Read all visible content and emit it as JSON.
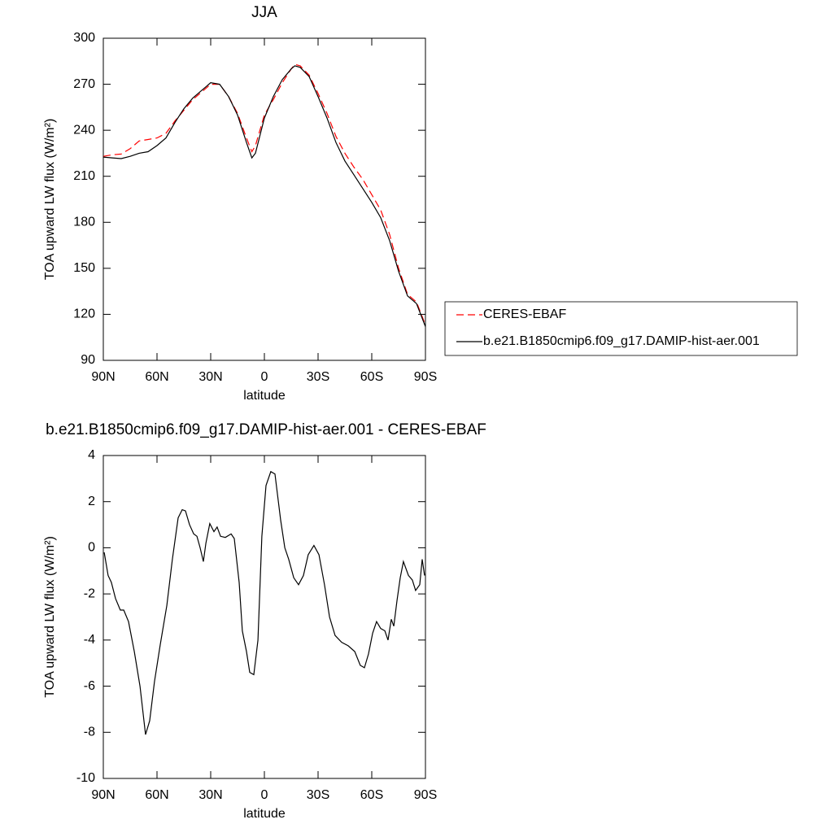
{
  "chart_data": [
    {
      "type": "line",
      "title": "JJA",
      "xlabel": "latitude",
      "ylabel": "TOA upward LW flux (W/m²)",
      "x": [
        90,
        85,
        80,
        75,
        70,
        65,
        60,
        55,
        50,
        45,
        40,
        35,
        30,
        25,
        20,
        15,
        10,
        7,
        5,
        0,
        -5,
        -10,
        -15,
        -17,
        -20,
        -25,
        -30,
        -35,
        -40,
        -45,
        -50,
        -55,
        -60,
        -65,
        -70,
        -75,
        -80,
        -85,
        -90
      ],
      "xlim": [
        90,
        -90
      ],
      "xticks": [
        {
          "value": 90,
          "label": "90N"
        },
        {
          "value": 60,
          "label": "60N"
        },
        {
          "value": 30,
          "label": "30N"
        },
        0,
        {
          "value": -30,
          "label": "30S"
        },
        {
          "value": -60,
          "label": "60S"
        },
        {
          "value": -90,
          "label": "90S"
        }
      ],
      "ylim": [
        90,
        300
      ],
      "yticks": [
        90,
        120,
        150,
        180,
        210,
        240,
        270,
        300
      ],
      "legend": "right",
      "series": [
        {
          "name": "CERES-EBAF",
          "color": "#ff0000",
          "dashed": true,
          "values": [
            223,
            224,
            224.5,
            228,
            233,
            234,
            235,
            238,
            246,
            253,
            260,
            265,
            270,
            270,
            262,
            251,
            235,
            226,
            230,
            250,
            260,
            271,
            280,
            283,
            282,
            276,
            264,
            251,
            236,
            225,
            216,
            208,
            198,
            188,
            172,
            150,
            133,
            128,
            113
          ]
        },
        {
          "name": "b.e21.B1850cmip6.f09_g17.DAMIP-hist-aer.001",
          "color": "#000000",
          "dashed": false,
          "values": [
            222.5,
            222,
            221.5,
            223,
            225,
            226,
            230,
            235,
            245,
            254,
            261,
            266,
            271,
            270,
            262,
            250,
            232,
            222,
            225,
            248,
            262,
            273,
            280,
            282,
            281,
            275,
            262,
            248,
            232,
            220,
            211,
            202,
            193,
            183,
            168,
            148,
            132,
            127,
            112
          ]
        }
      ]
    },
    {
      "type": "line",
      "title": "b.e21.B1850cmip6.f09_g17.DAMIP-hist-aer.001 - CERES-EBAF",
      "xlabel": "latitude",
      "ylabel": "TOA upward LW flux (W/m²)",
      "x": [
        89.5,
        87.3,
        85.5,
        83.2,
        80.5,
        78.6,
        75.9,
        72.7,
        69.5,
        66.4,
        64.1,
        61.4,
        58.2,
        54.5,
        51.4,
        48.2,
        45.9,
        44.1,
        41.8,
        39.5,
        37.7,
        35.9,
        34.1,
        32.7,
        30.5,
        28.2,
        26.4,
        24.5,
        21.8,
        18.6,
        16.8,
        14.1,
        12.3,
        10.0,
        8.2,
        5.9,
        3.6,
        1.4,
        -0.9,
        -3.6,
        -5.9,
        -9.1,
        -11.4,
        -13.6,
        -16.4,
        -19.1,
        -21.8,
        -24.5,
        -27.7,
        -30.5,
        -33.6,
        -36.4,
        -39.5,
        -43.2,
        -46.8,
        -50.5,
        -53.6,
        -55.9,
        -58.2,
        -60.5,
        -62.7,
        -65.0,
        -67.3,
        -69.1,
        -70.9,
        -72.3,
        -74.1,
        -75.9,
        -77.7,
        -80.5,
        -82.7,
        -84.5,
        -86.8,
        -88.2,
        -89.5
      ],
      "values": [
        -0.2,
        -1.2,
        -1.5,
        -2.2,
        -2.7,
        -2.7,
        -3.2,
        -4.5,
        -6.0,
        -8.1,
        -7.5,
        -5.8,
        -4.2,
        -2.5,
        -0.5,
        1.3,
        1.65,
        1.6,
        1.0,
        0.6,
        0.5,
        0.0,
        -0.6,
        0.2,
        1.05,
        0.7,
        0.9,
        0.5,
        0.45,
        0.6,
        0.4,
        -1.5,
        -3.6,
        -4.5,
        -5.4,
        -5.5,
        -4.0,
        0.5,
        2.7,
        3.3,
        3.2,
        1.2,
        0.0,
        -0.5,
        -1.3,
        -1.6,
        -1.2,
        -0.3,
        0.1,
        -0.3,
        -1.6,
        -3.0,
        -3.8,
        -4.1,
        -4.25,
        -4.5,
        -5.1,
        -5.2,
        -4.6,
        -3.7,
        -3.2,
        -3.5,
        -3.6,
        -4.0,
        -3.1,
        -3.4,
        -2.3,
        -1.3,
        -0.6,
        -1.2,
        -1.4,
        -1.85,
        -1.6,
        -0.5,
        -1.2
      ],
      "color": "#000000",
      "xlim": [
        90,
        -90
      ],
      "xticks": [
        {
          "value": 90,
          "label": "90N"
        },
        {
          "value": 60,
          "label": "60N"
        },
        {
          "value": 30,
          "label": "30N"
        },
        0,
        {
          "value": -30,
          "label": "30S"
        },
        {
          "value": -60,
          "label": "60S"
        },
        {
          "value": -90,
          "label": "90S"
        }
      ],
      "ylim": [
        -10,
        4
      ],
      "yticks": [
        -10,
        -8,
        -6,
        -4,
        -2,
        0,
        2,
        4
      ]
    }
  ]
}
